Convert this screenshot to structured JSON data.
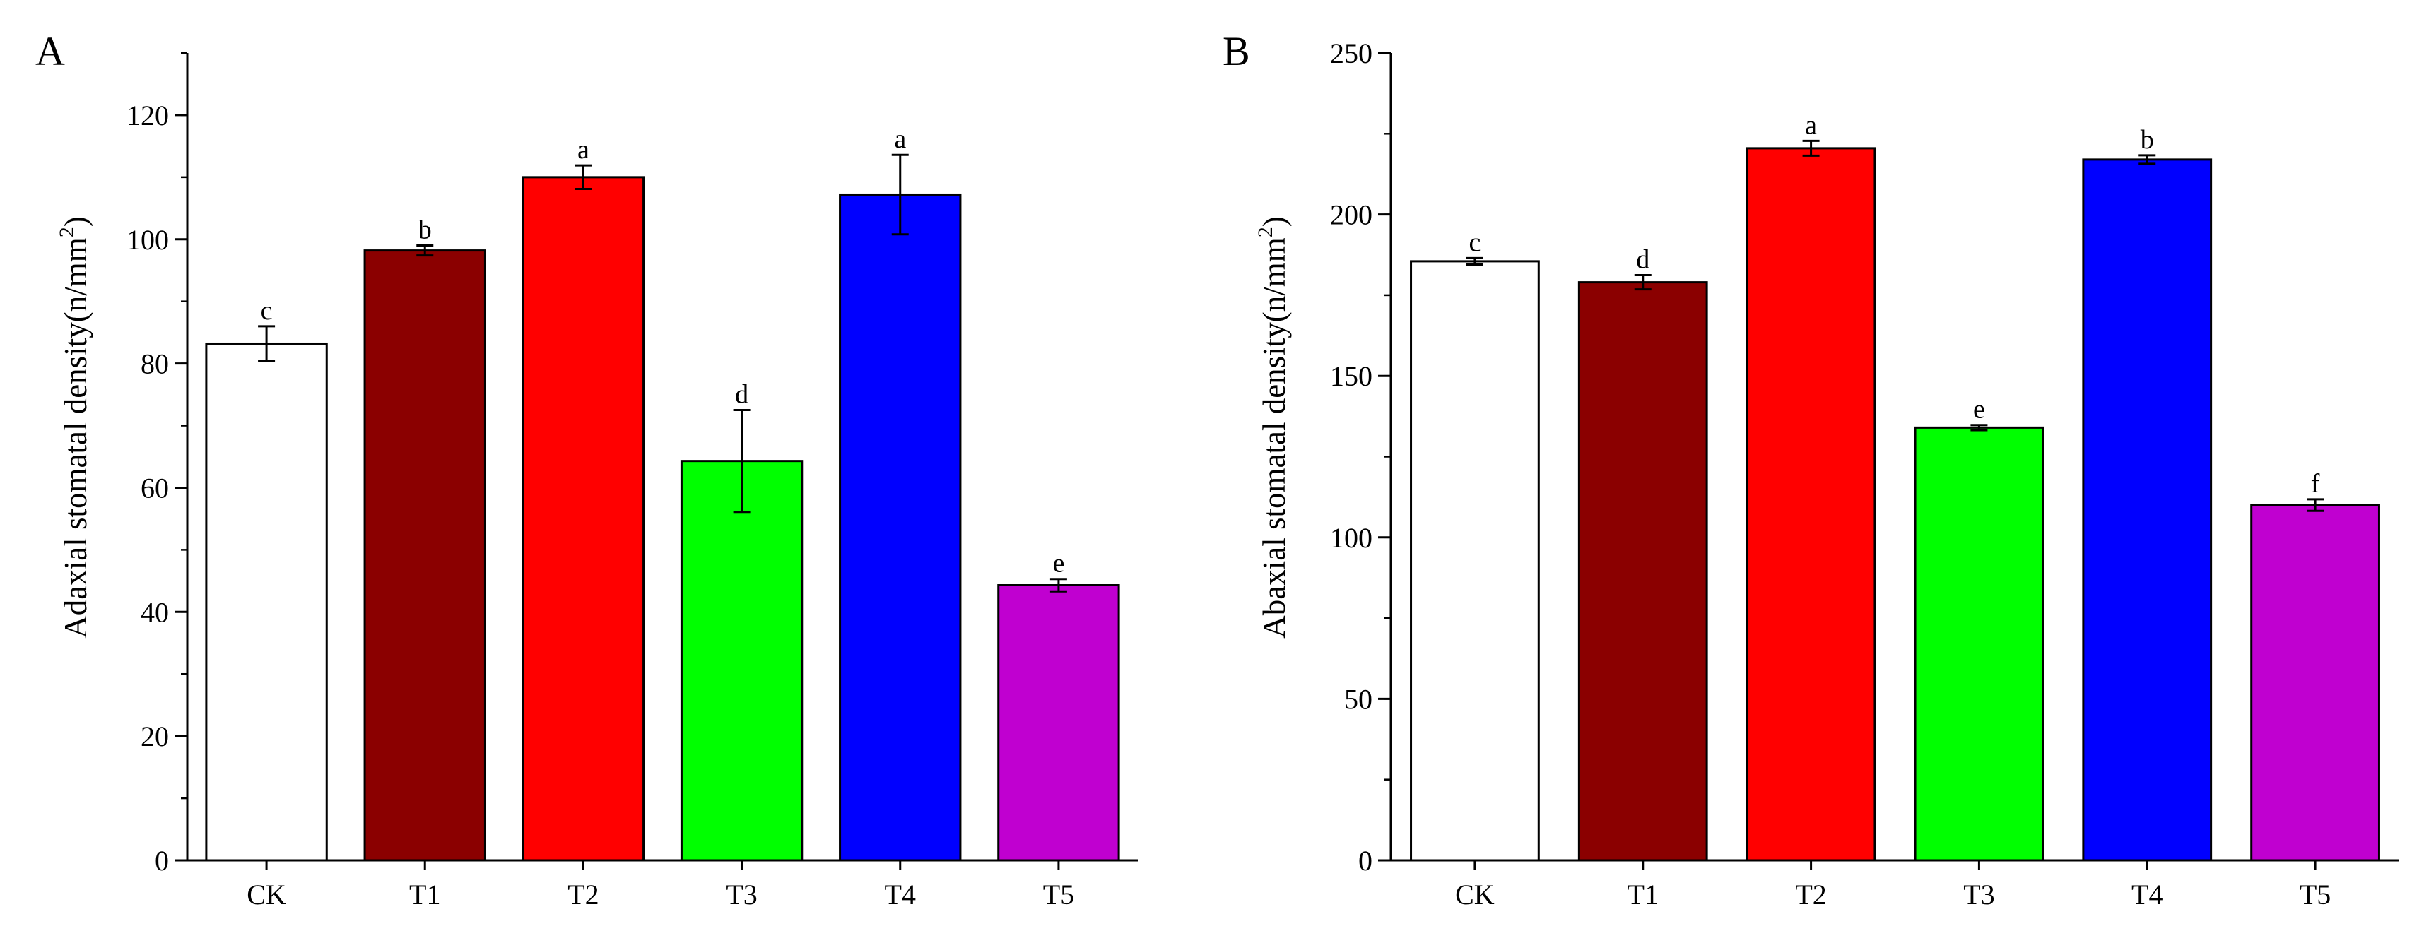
{
  "chart_data": [
    {
      "type": "bar",
      "panel_label": "A",
      "title": "",
      "xlabel": "",
      "ylabel": "Adaxial stomatal density(n/mm",
      "ylabel_sup": "2",
      "ylabel_close": ")",
      "ylim": [
        0,
        130
      ],
      "yticks": [
        0,
        20,
        40,
        60,
        80,
        100,
        120
      ],
      "ytick_labels": [
        "0",
        "20",
        "40",
        "60",
        "80",
        "100",
        "120"
      ],
      "minor_step": 10,
      "categories": [
        "CK",
        "T1",
        "T2",
        "T3",
        "T4",
        "T5"
      ],
      "values": [
        83.2,
        98.2,
        110.0,
        64.3,
        107.2,
        44.3
      ],
      "errors": [
        2.8,
        0.8,
        1.9,
        8.2,
        6.4,
        1.0
      ],
      "significance": [
        "c",
        "b",
        "a",
        "d",
        "a",
        "e"
      ],
      "colors": [
        "#ffffff",
        "#8b0000",
        "#ff0000",
        "#00ff00",
        "#0000ff",
        "#c000d0"
      ],
      "grid": false,
      "legend": "none"
    },
    {
      "type": "bar",
      "panel_label": "B",
      "title": "",
      "xlabel": "",
      "ylabel": "Abaxial stomatal density(n/mm",
      "ylabel_sup": "2",
      "ylabel_close": ")",
      "ylim": [
        0,
        250
      ],
      "yticks": [
        0,
        50,
        100,
        150,
        200,
        250
      ],
      "ytick_labels": [
        "0",
        "50",
        "100",
        "150",
        "200",
        "250"
      ],
      "minor_step": 25,
      "categories": [
        "CK",
        "T1",
        "T2",
        "T3",
        "T4",
        "T5"
      ],
      "values": [
        185.5,
        179.0,
        220.5,
        134.0,
        217.0,
        110.0
      ],
      "errors": [
        1.0,
        2.2,
        2.3,
        0.8,
        1.3,
        1.8
      ],
      "significance": [
        "c",
        "d",
        "a",
        "e",
        "b",
        "f"
      ],
      "colors": [
        "#ffffff",
        "#8b0000",
        "#ff0000",
        "#00ff00",
        "#0000ff",
        "#c000d0"
      ],
      "grid": false,
      "legend": "none"
    }
  ]
}
